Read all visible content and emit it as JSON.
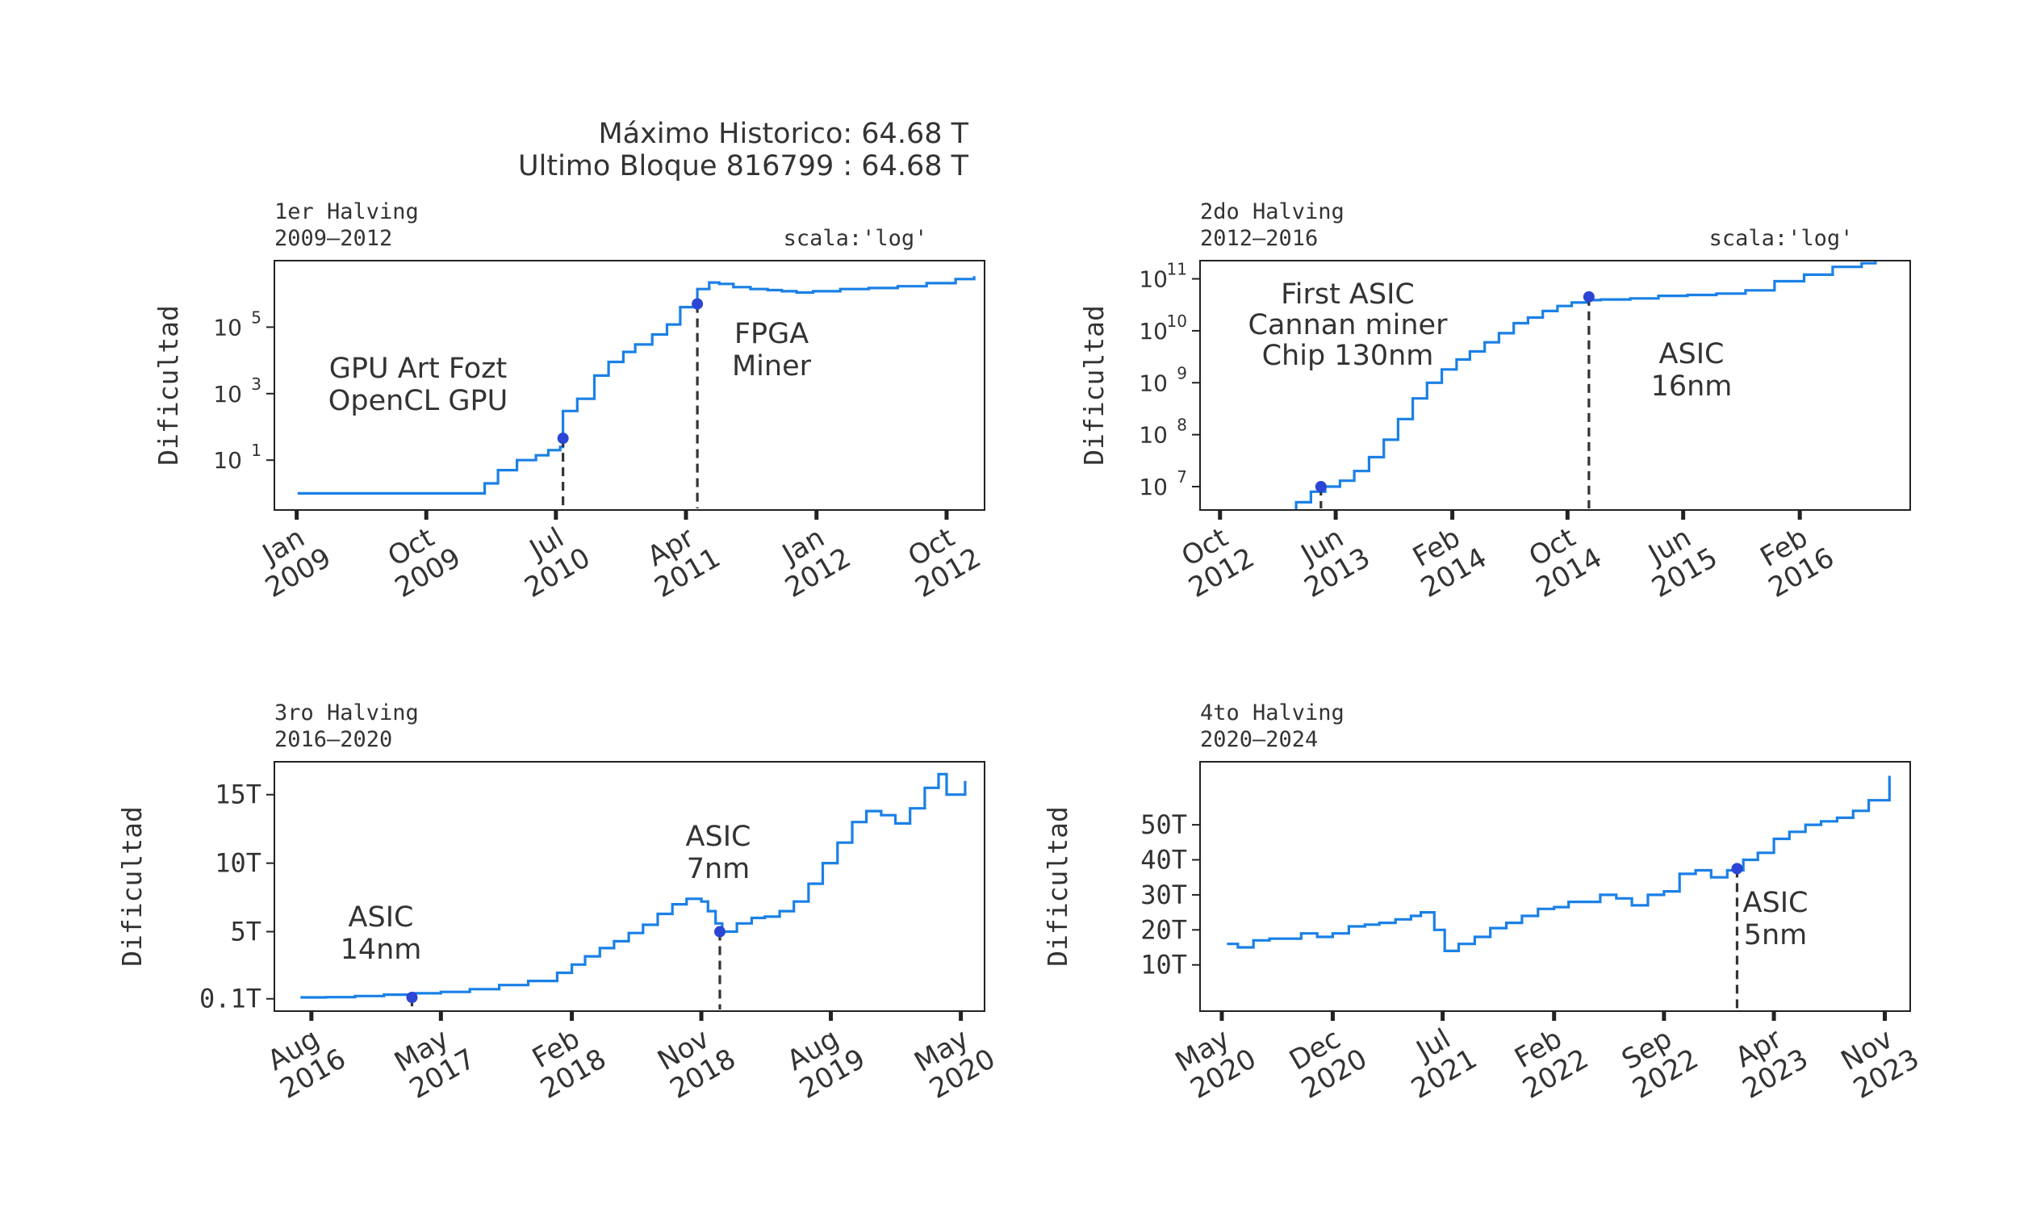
{
  "header": {
    "max_line": "Máximo Historico: 64.68 T",
    "last_block_line": "Ultimo Bloque 816799 : 64.68 T"
  },
  "colors": {
    "line": "#1a80e6",
    "marker": "#2b45d4",
    "text": "#333333",
    "axes": "#222222"
  },
  "chart_data": [
    {
      "type": "line",
      "title": "1er Halving",
      "subtitle": "2009–2012",
      "scale_note": "scala:'log'",
      "ylabel": "Dificultad",
      "yscale": "log",
      "xlim": [
        "2008-11-15",
        "2012-12-20"
      ],
      "ylim_log10": [
        -0.5,
        7.0
      ],
      "xticks": [
        {
          "date": "2009-01-01",
          "line1": "Jan",
          "line2": "2009"
        },
        {
          "date": "2009-10-01",
          "line1": "Oct",
          "line2": "2009"
        },
        {
          "date": "2010-07-01",
          "line1": "Jul",
          "line2": "2010"
        },
        {
          "date": "2011-04-01",
          "line1": "Apr",
          "line2": "2011"
        },
        {
          "date": "2012-01-01",
          "line1": "Jan",
          "line2": "2012"
        },
        {
          "date": "2012-10-01",
          "line1": "Oct",
          "line2": "2012"
        }
      ],
      "yticks": [
        {
          "value": 10,
          "base": "10",
          "exp": "1"
        },
        {
          "value": 1000,
          "base": "10",
          "exp": "3"
        },
        {
          "value": 100000,
          "base": "10",
          "exp": "5"
        }
      ],
      "series": [
        {
          "x": [
            "2009-01-03",
            "2009-12-30",
            "2010-02-01",
            "2010-03-01",
            "2010-04-10",
            "2010-05-20",
            "2010-06-15",
            "2010-07-10",
            "2010-07-16",
            "2010-08-15",
            "2010-09-20",
            "2010-10-20",
            "2010-11-20",
            "2010-12-15",
            "2011-01-20",
            "2011-02-20",
            "2011-03-20",
            "2011-04-25",
            "2011-05-20",
            "2011-06-10",
            "2011-07-10",
            "2011-08-15",
            "2011-09-20",
            "2011-10-20",
            "2011-11-20",
            "2011-12-25",
            "2012-02-20",
            "2012-04-20",
            "2012-06-20",
            "2012-08-20",
            "2012-10-20",
            "2012-11-28"
          ],
          "y": [
            1,
            1,
            2,
            5,
            10,
            14,
            20,
            25,
            300,
            700,
            3500,
            9000,
            18000,
            30000,
            60000,
            120000,
            400000,
            1400000,
            2200000,
            2000000,
            1600000,
            1400000,
            1300000,
            1200000,
            1100000,
            1200000,
            1400000,
            1500000,
            1700000,
            2100000,
            2800000,
            3400000
          ]
        }
      ],
      "markers": [
        {
          "date": "2010-07-16",
          "value": 45.38
        },
        {
          "date": "2011-04-25",
          "value": 500000
        }
      ],
      "annotations": [
        {
          "date": "2010-07-16",
          "lines": [
            "GPU Art Fozt",
            "OpenCL GPU"
          ]
        },
        {
          "date": "2011-04-25",
          "lines": [
            "FPGA",
            "Miner"
          ]
        }
      ]
    },
    {
      "type": "line",
      "title": "2do Halving",
      "subtitle": "2012–2016",
      "scale_note": "scala:'log'",
      "ylabel": "Dificultad",
      "yscale": "log",
      "xlim": [
        "2012-08-20",
        "2016-09-20"
      ],
      "ylim_log10": [
        6.55,
        11.35
      ],
      "xticks": [
        {
          "date": "2012-10-01",
          "line1": "Oct",
          "line2": "2012"
        },
        {
          "date": "2013-06-01",
          "line1": "Jun",
          "line2": "2013"
        },
        {
          "date": "2014-02-01",
          "line1": "Feb",
          "line2": "2014"
        },
        {
          "date": "2014-10-01",
          "line1": "Oct",
          "line2": "2014"
        },
        {
          "date": "2015-06-01",
          "line1": "Jun",
          "line2": "2015"
        },
        {
          "date": "2016-02-01",
          "line1": "Feb",
          "line2": "2016"
        }
      ],
      "yticks": [
        {
          "value": 10000000,
          "base": "10",
          "exp": "7"
        },
        {
          "value": 100000000,
          "base": "10",
          "exp": "8"
        },
        {
          "value": 1000000000,
          "base": "10",
          "exp": "9"
        },
        {
          "value": 10000000000,
          "base": "10",
          "exp": "10"
        },
        {
          "value": 100000000000,
          "base": "10",
          "exp": "11"
        }
      ],
      "series": [
        {
          "x": [
            "2012-11-28",
            "2012-12-20",
            "2013-01-20",
            "2013-02-10",
            "2013-03-10",
            "2013-04-10",
            "2013-05-10",
            "2013-06-10",
            "2013-07-10",
            "2013-08-10",
            "2013-09-10",
            "2013-10-10",
            "2013-11-10",
            "2013-12-10",
            "2014-01-10",
            "2014-02-10",
            "2014-03-10",
            "2014-04-10",
            "2014-05-10",
            "2014-06-10",
            "2014-07-10",
            "2014-08-10",
            "2014-09-10",
            "2014-10-10",
            "2014-11-10",
            "2014-12-10",
            "2015-02-10",
            "2015-04-10",
            "2015-06-10",
            "2015-08-10",
            "2015-10-10",
            "2015-12-10",
            "2016-02-10",
            "2016-04-10",
            "2016-06-10",
            "2016-07-09"
          ],
          "y": [
            3400000,
            3300000,
            3100000,
            3400000,
            5000000,
            8000000,
            10000000,
            13000000,
            20000000,
            37000000,
            80000000,
            200000000,
            500000000,
            1000000000,
            1800000000,
            2800000000,
            4000000000,
            6000000000,
            9000000000,
            14000000000,
            18000000000,
            24000000000,
            30000000000,
            35000000000,
            39000000000,
            40000000000,
            42000000000,
            47000000000,
            49000000000,
            52000000000,
            60000000000,
            90000000000,
            120000000000,
            170000000000,
            200000000000,
            215000000000
          ]
        }
      ],
      "markers": [
        {
          "date": "2013-05-01",
          "value": 10000000
        },
        {
          "date": "2014-11-15",
          "value": 45000000000
        }
      ],
      "annotations": [
        {
          "date": "2013-05-01",
          "lines": [
            "First ASIC",
            "Cannan miner",
            "Chip 130nm"
          ]
        },
        {
          "date": "2014-11-15",
          "lines": [
            "ASIC",
            "16nm"
          ]
        }
      ]
    },
    {
      "type": "line",
      "title": "3ro Halving",
      "subtitle": "2016–2020",
      "scale_note": "",
      "ylabel": "Dificultad",
      "yscale": "linear",
      "xlim": [
        "2016-05-15",
        "2020-06-20"
      ],
      "ylim": [
        -0.8,
        17.4
      ],
      "xticks": [
        {
          "date": "2016-08-01",
          "line1": "Aug",
          "line2": "2016"
        },
        {
          "date": "2017-05-01",
          "line1": "May",
          "line2": "2017"
        },
        {
          "date": "2018-02-01",
          "line1": "Feb",
          "line2": "2018"
        },
        {
          "date": "2018-11-01",
          "line1": "Nov",
          "line2": "2018"
        },
        {
          "date": "2019-08-01",
          "line1": "Aug",
          "line2": "2019"
        },
        {
          "date": "2020-05-01",
          "line1": "May",
          "line2": "2020"
        }
      ],
      "yticks": [
        {
          "value": 0.1,
          "label": "0.1T"
        },
        {
          "value": 5,
          "label": "5T"
        },
        {
          "value": 10,
          "label": "10T"
        },
        {
          "value": 15,
          "label": "15T"
        }
      ],
      "series": [
        {
          "x": [
            "2016-07-09",
            "2016-09-01",
            "2016-11-01",
            "2017-01-01",
            "2017-03-01",
            "2017-05-01",
            "2017-07-01",
            "2017-09-01",
            "2017-11-01",
            "2018-01-01",
            "2018-02-01",
            "2018-03-01",
            "2018-04-01",
            "2018-05-01",
            "2018-06-01",
            "2018-07-01",
            "2018-08-01",
            "2018-09-01",
            "2018-10-01",
            "2018-11-01",
            "2018-11-15",
            "2018-12-01",
            "2018-12-15",
            "2019-01-15",
            "2019-02-15",
            "2019-03-15",
            "2019-04-15",
            "2019-05-15",
            "2019-06-15",
            "2019-07-15",
            "2019-08-15",
            "2019-09-15",
            "2019-10-15",
            "2019-11-15",
            "2019-12-15",
            "2020-01-15",
            "2020-02-15",
            "2020-03-15",
            "2020-04-01",
            "2020-05-10"
          ],
          "y": [
            0.2,
            0.22,
            0.3,
            0.4,
            0.5,
            0.6,
            0.8,
            1.1,
            1.4,
            2.0,
            2.6,
            3.2,
            3.8,
            4.3,
            4.9,
            5.5,
            6.3,
            7.0,
            7.4,
            7.2,
            6.5,
            5.6,
            5.0,
            5.6,
            6.0,
            6.1,
            6.5,
            7.2,
            8.5,
            10.0,
            11.5,
            13.0,
            13.8,
            13.5,
            12.9,
            14.0,
            15.5,
            16.5,
            15.0,
            16.0
          ]
        }
      ],
      "markers": [
        {
          "date": "2017-03-01",
          "value": 0.2
        },
        {
          "date": "2018-12-10",
          "value": 5.0
        }
      ],
      "annotations": [
        {
          "date": "2017-03-01",
          "lines": [
            "ASIC",
            "14nm"
          ]
        },
        {
          "date": "2018-12-10",
          "lines": [
            "ASIC",
            "7nm"
          ]
        }
      ]
    },
    {
      "type": "line",
      "title": "4to Halving",
      "subtitle": "2020–2024",
      "scale_note": "",
      "ylabel": "Dificultad",
      "yscale": "linear",
      "xlim": [
        "2020-03-20",
        "2023-12-20"
      ],
      "ylim": [
        -3.2,
        68.0
      ],
      "xticks": [
        {
          "date": "2020-05-01",
          "line1": "May",
          "line2": "2020"
        },
        {
          "date": "2020-12-01",
          "line1": "Dec",
          "line2": "2020"
        },
        {
          "date": "2021-07-01",
          "line1": "Jul",
          "line2": "2021"
        },
        {
          "date": "2022-02-01",
          "line1": "Feb",
          "line2": "2022"
        },
        {
          "date": "2022-09-01",
          "line1": "Sep",
          "line2": "2022"
        },
        {
          "date": "2023-04-01",
          "line1": "Apr",
          "line2": "2023"
        },
        {
          "date": "2023-11-01",
          "line1": "Nov",
          "line2": "2023"
        }
      ],
      "yticks": [
        {
          "value": 10,
          "label": "10T"
        },
        {
          "value": 20,
          "label": "20T"
        },
        {
          "value": 30,
          "label": "30T"
        },
        {
          "value": 40,
          "label": "40T"
        },
        {
          "value": 50,
          "label": "50T"
        }
      ],
      "series": [
        {
          "x": [
            "2020-05-11",
            "2020-06-01",
            "2020-07-01",
            "2020-08-01",
            "2020-09-01",
            "2020-10-01",
            "2020-11-01",
            "2020-12-01",
            "2021-01-01",
            "2021-02-01",
            "2021-03-01",
            "2021-04-01",
            "2021-05-01",
            "2021-05-20",
            "2021-06-15",
            "2021-07-05",
            "2021-08-01",
            "2021-09-01",
            "2021-10-01",
            "2021-11-01",
            "2021-12-01",
            "2022-01-01",
            "2022-02-01",
            "2022-03-01",
            "2022-04-01",
            "2022-05-01",
            "2022-06-01",
            "2022-07-01",
            "2022-08-01",
            "2022-09-01",
            "2022-10-01",
            "2022-11-01",
            "2022-12-01",
            "2023-01-01",
            "2023-02-01",
            "2023-03-01",
            "2023-04-01",
            "2023-05-01",
            "2023-06-01",
            "2023-07-01",
            "2023-08-01",
            "2023-09-01",
            "2023-10-01",
            "2023-11-10"
          ],
          "y": [
            16,
            15,
            17,
            17.5,
            17.5,
            19,
            18,
            19,
            21,
            21.5,
            22,
            23,
            24,
            25,
            20,
            14,
            16,
            18,
            20.5,
            22,
            24,
            26,
            26.5,
            28,
            28,
            30,
            29,
            27,
            30,
            31,
            36,
            37,
            35,
            37,
            40,
            42,
            46,
            48,
            50,
            51,
            52,
            54,
            57,
            64
          ]
        }
      ],
      "markers": [
        {
          "date": "2023-01-20",
          "value": 37.5
        }
      ],
      "annotations": [
        {
          "date": "2023-01-20",
          "lines": [
            "ASIC",
            "5nm"
          ]
        }
      ]
    }
  ]
}
